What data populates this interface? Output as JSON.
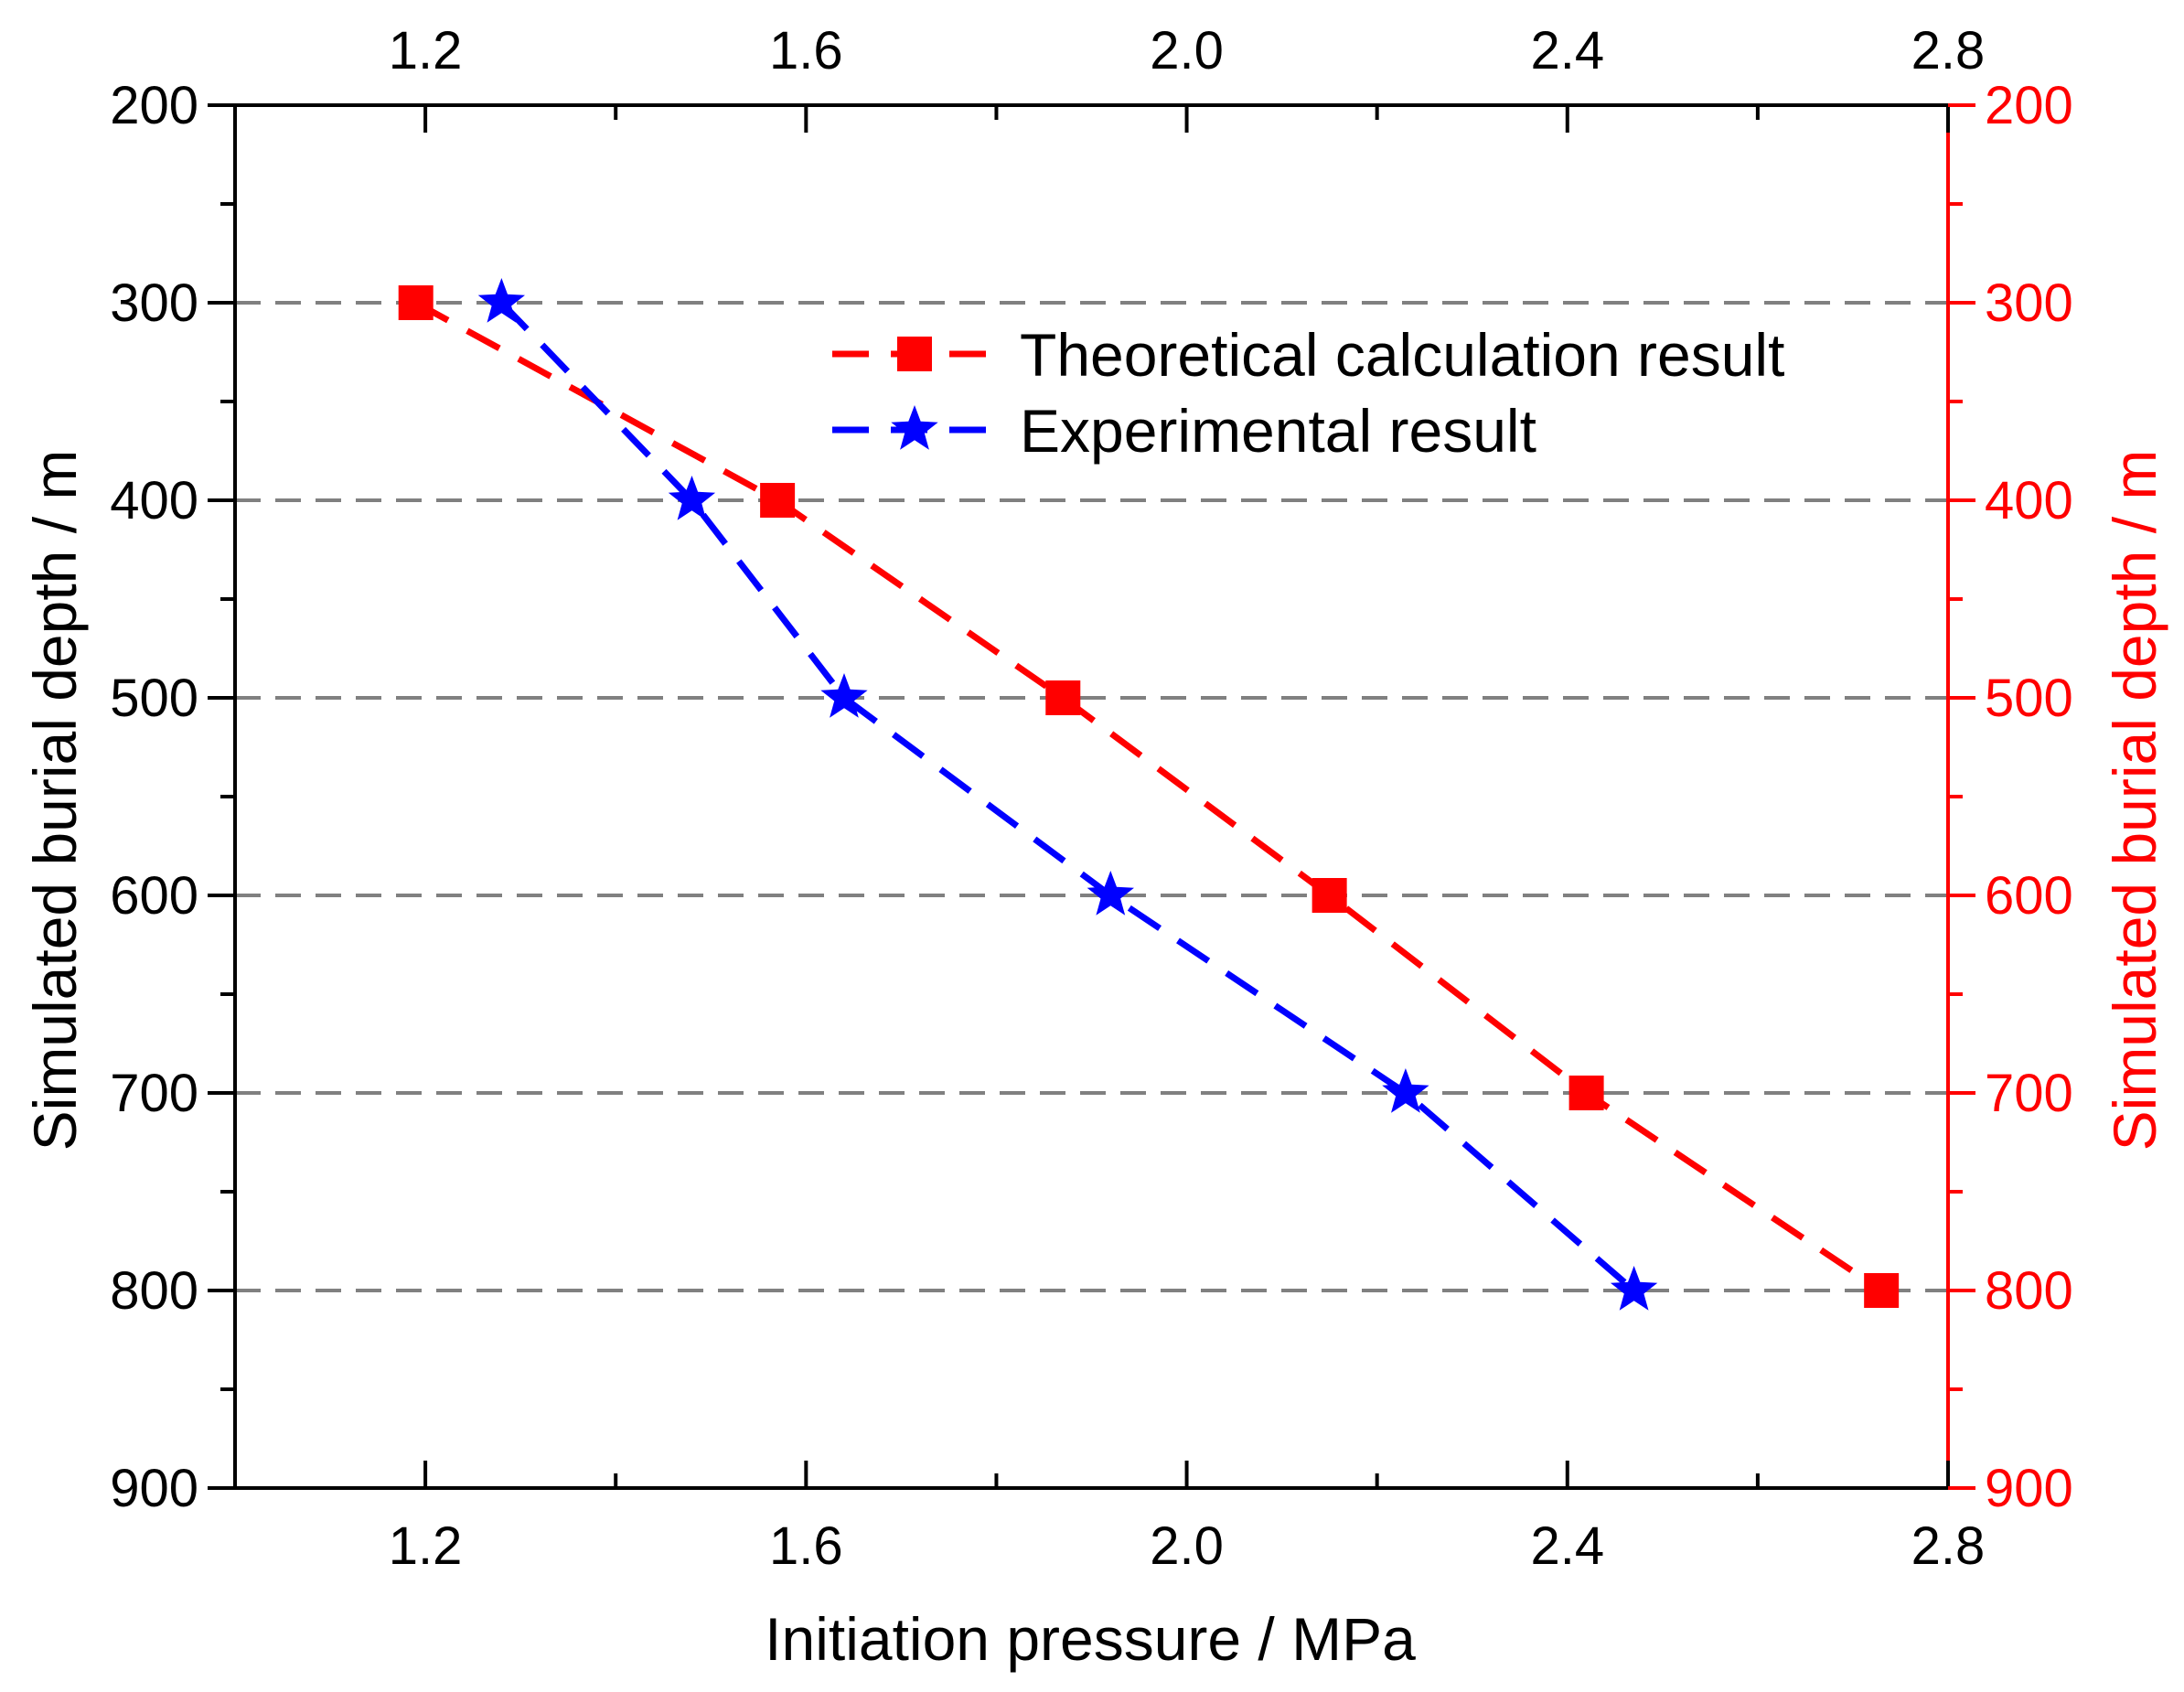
{
  "chart_data": {
    "type": "line",
    "xlabel": "Initiation pressure / MPa",
    "ylabel_left": "Simulated burial depth / m",
    "ylabel_right": "Simulated burial depth / m",
    "xlim": [
      1.0,
      2.8
    ],
    "ylim": [
      200,
      900
    ],
    "y_inverted": true,
    "x_ticks": [
      1.2,
      1.6,
      2.0,
      2.4,
      2.8
    ],
    "x_tick_labels": [
      "1.2",
      "1.6",
      "2.0",
      "2.4",
      "2.8"
    ],
    "y_ticks": [
      200,
      300,
      400,
      500,
      600,
      700,
      800,
      900
    ],
    "y_tick_labels": [
      "200",
      "300",
      "400",
      "500",
      "600",
      "700",
      "800",
      "900"
    ],
    "gridlines_y": [
      300,
      400,
      500,
      600,
      700,
      800
    ],
    "legend_position": "top-right",
    "series": [
      {
        "name": "Theoretical calculation result",
        "color": "#ff0000",
        "marker": "square",
        "line_style": "dashed",
        "x": [
          1.19,
          1.57,
          1.87,
          2.15,
          2.42,
          2.73
        ],
        "y": [
          300,
          400,
          500,
          600,
          700,
          800
        ]
      },
      {
        "name": "Experimental result",
        "color": "#0000ff",
        "marker": "star",
        "line_style": "dashed",
        "x": [
          1.28,
          1.48,
          1.64,
          1.92,
          2.23,
          2.47
        ],
        "y": [
          300,
          400,
          500,
          600,
          700,
          800
        ]
      }
    ],
    "axis_color_left": "#000000",
    "axis_color_right": "#ff0000",
    "grid_color": "#808080"
  }
}
